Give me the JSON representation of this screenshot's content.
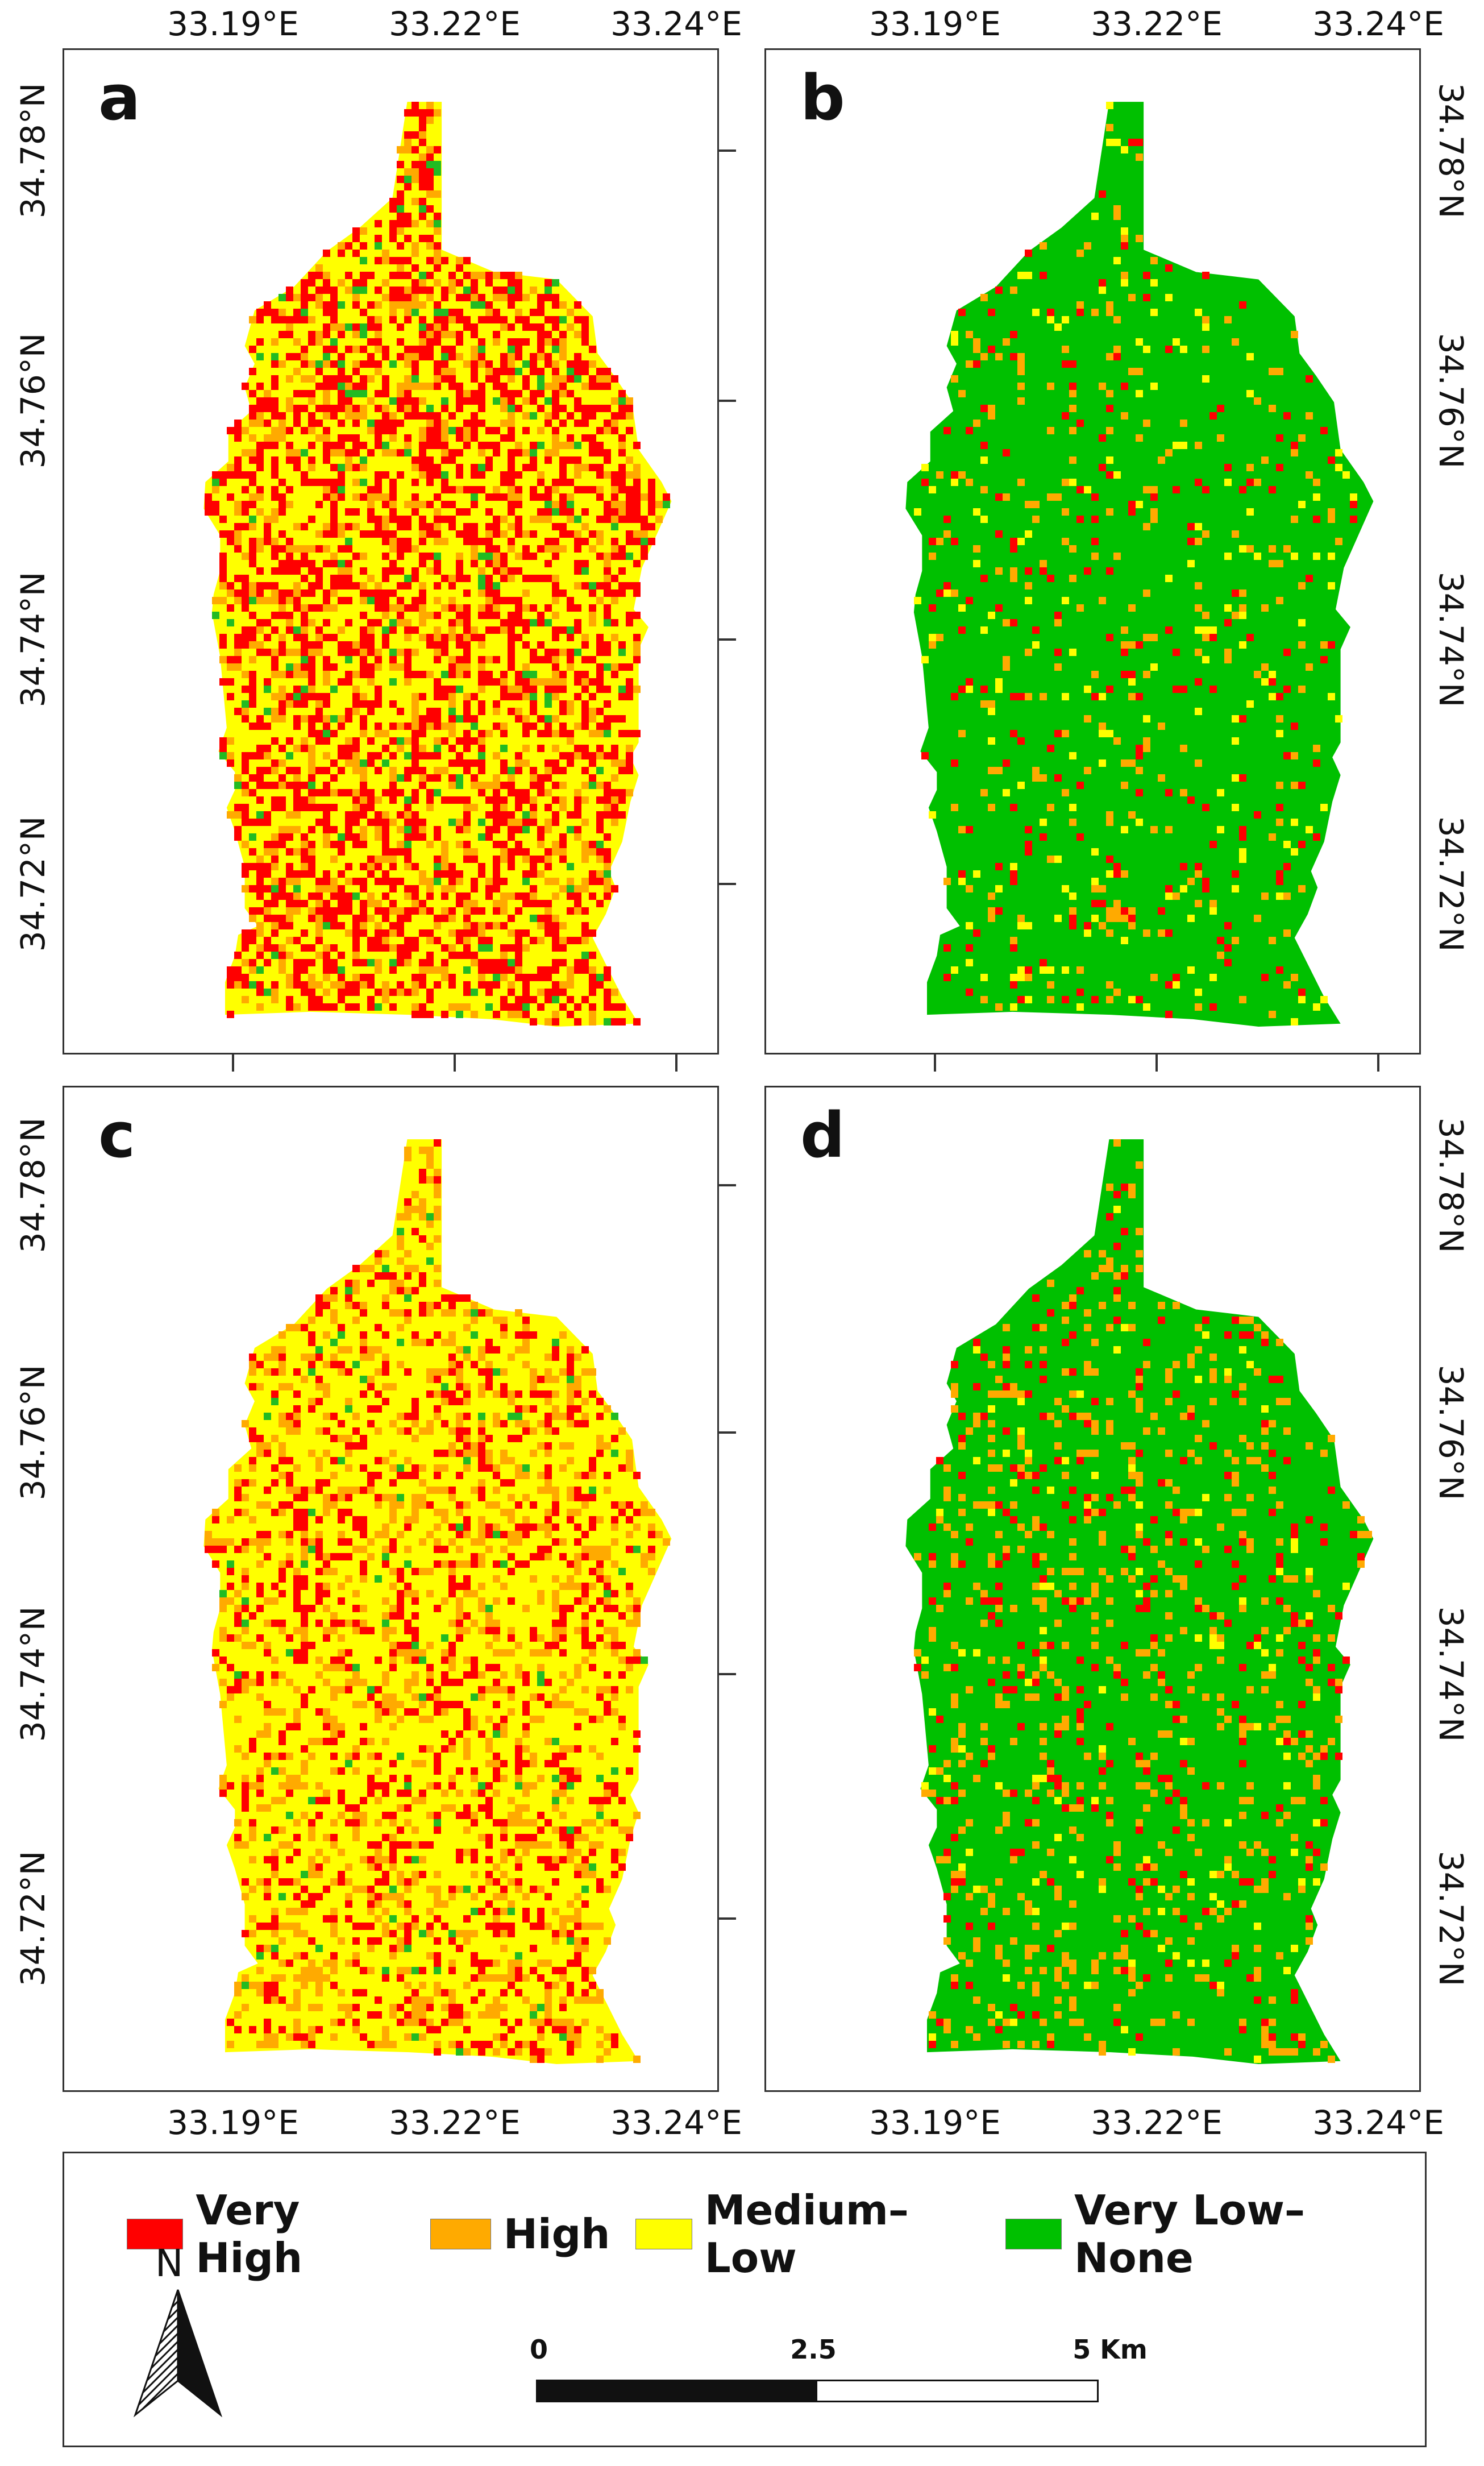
{
  "panels": [
    {
      "letter": "a",
      "colors": [
        "#ff0000",
        "#ffaa00",
        "#ffff00",
        "#22bb22"
      ],
      "weights": [
        0.34,
        0.14,
        0.48,
        0.04
      ]
    },
    {
      "letter": "b",
      "colors": [
        "#ff0000",
        "#ffaa00",
        "#ffff00",
        "#00c000"
      ],
      "weights": [
        0.04,
        0.05,
        0.03,
        0.88
      ]
    },
    {
      "letter": "c",
      "colors": [
        "#ff0000",
        "#ffaa00",
        "#ffff00",
        "#22bb22"
      ],
      "weights": [
        0.16,
        0.2,
        0.62,
        0.02
      ]
    },
    {
      "letter": "d",
      "colors": [
        "#ff0000",
        "#ffaa00",
        "#ffff00",
        "#00c000"
      ],
      "weights": [
        0.05,
        0.1,
        0.02,
        0.83
      ]
    }
  ],
  "x_ticks": [
    "33.19°E",
    "33.22°E",
    "33.24°E"
  ],
  "y_ticks": [
    "34.78°N",
    "34.76°N",
    "34.74°N",
    "34.72°N"
  ],
  "legend": {
    "items": [
      {
        "label": "Very High",
        "color": "#ff0000"
      },
      {
        "label": "High",
        "color": "#ffaa00"
      },
      {
        "label": "Medium–Low",
        "color": "#ffff00"
      },
      {
        "label": "Very Low–None",
        "color": "#00c000"
      }
    ]
  },
  "north_arrow": {
    "label": "N",
    "icon": "north-arrow-icon"
  },
  "scale_bar": {
    "labels": [
      "0",
      "2.5",
      "5 Km"
    ]
  }
}
